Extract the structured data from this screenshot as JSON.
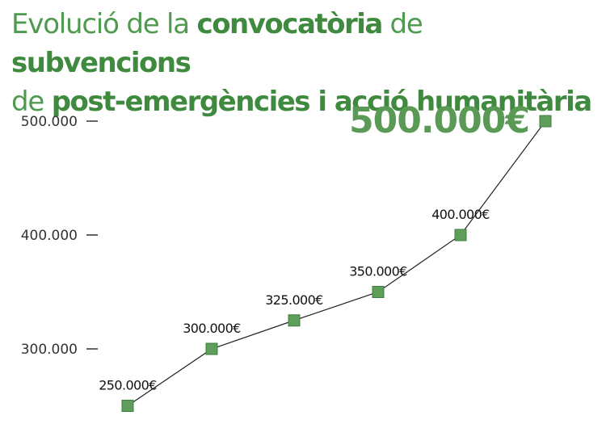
{
  "title": {
    "line1": [
      {
        "text": "Evolució de la ",
        "bold": false
      },
      {
        "text": "convocatòria",
        "bold": true
      },
      {
        "text": " de ",
        "bold": false
      },
      {
        "text": "subvencions",
        "bold": true
      }
    ],
    "line2": [
      {
        "text": "de ",
        "bold": false
      },
      {
        "text": "post-emergències i acció humanitària",
        "bold": true
      }
    ]
  },
  "colors": {
    "title": "#4e9a4e",
    "marker": "#5e9e5a",
    "marker_stroke": "#3f7f3f",
    "line": "#222222",
    "highlight": "#5a9a56",
    "axis_text": "#333333"
  },
  "chart_data": {
    "type": "line",
    "title": "Evolució de la convocatòria de subvencions de post-emergències i acció humanitària",
    "xlabel": "",
    "ylabel": "",
    "ylim": [
      250000,
      500000
    ],
    "yticks": [
      300000,
      400000,
      500000
    ],
    "ytick_labels": [
      "300.000",
      "400.000",
      "500.000"
    ],
    "grid": false,
    "legend": "none",
    "series": [
      {
        "values": [
          250000,
          300000,
          325000,
          350000,
          400000,
          500000
        ],
        "labels": [
          "250.000€",
          "300.000€",
          "325.000€",
          "350.000€",
          "400.000€",
          "500.000€"
        ]
      }
    ],
    "highlight_index": 5
  }
}
